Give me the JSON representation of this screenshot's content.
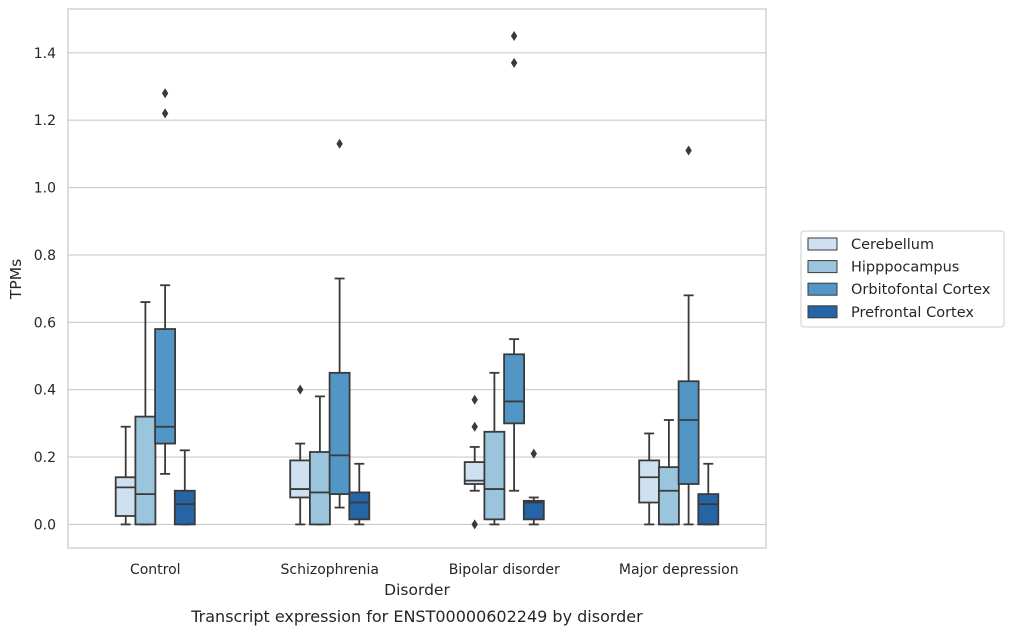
{
  "chart_data": {
    "type": "box",
    "xlabel": "Disorder",
    "ylabel": "TPMs",
    "caption": "Transcript expression for ENST00000602249 by disorder",
    "ylim": [
      -0.07,
      1.53
    ],
    "yticks": [
      0.0,
      0.2,
      0.4,
      0.6,
      0.8,
      1.0,
      1.2,
      1.4
    ],
    "ytick_labels": [
      "0.0",
      "0.2",
      "0.4",
      "0.6",
      "0.8",
      "1.0",
      "1.2",
      "1.4"
    ],
    "grid": "horizontal",
    "legend_position": "right",
    "categories": [
      "Control",
      "Schizophrenia",
      "Bipolar disorder",
      "Major depression"
    ],
    "series": [
      {
        "name": "Cerebellum",
        "color": "#cfe0f0",
        "boxes": [
          {
            "whislo": 0.0,
            "q1": 0.025,
            "med": 0.11,
            "q3": 0.14,
            "whishi": 0.29,
            "fliers": []
          },
          {
            "whislo": 0.0,
            "q1": 0.08,
            "med": 0.105,
            "q3": 0.19,
            "whishi": 0.24,
            "fliers": [
              0.4
            ]
          },
          {
            "whislo": 0.1,
            "q1": 0.12,
            "med": 0.13,
            "q3": 0.185,
            "whishi": 0.23,
            "fliers": [
              0.37,
              0.29,
              0.0
            ]
          },
          {
            "whislo": 0.0,
            "q1": 0.065,
            "med": 0.14,
            "q3": 0.19,
            "whishi": 0.27,
            "fliers": []
          }
        ]
      },
      {
        "name": "Hipppocampus",
        "color": "#9ac5dc",
        "boxes": [
          {
            "whislo": 0.0,
            "q1": 0.0,
            "med": 0.09,
            "q3": 0.32,
            "whishi": 0.66,
            "fliers": []
          },
          {
            "whislo": 0.0,
            "q1": 0.0,
            "med": 0.095,
            "q3": 0.215,
            "whishi": 0.38,
            "fliers": []
          },
          {
            "whislo": 0.0,
            "q1": 0.015,
            "med": 0.105,
            "q3": 0.275,
            "whishi": 0.45,
            "fliers": []
          },
          {
            "whislo": 0.0,
            "q1": 0.0,
            "med": 0.1,
            "q3": 0.17,
            "whishi": 0.31,
            "fliers": []
          }
        ]
      },
      {
        "name": "Orbitofontal Cortex",
        "color": "#5296c6",
        "boxes": [
          {
            "whislo": 0.15,
            "q1": 0.24,
            "med": 0.29,
            "q3": 0.58,
            "whishi": 0.71,
            "fliers": [
              1.28,
              1.22
            ]
          },
          {
            "whislo": 0.05,
            "q1": 0.09,
            "med": 0.205,
            "q3": 0.45,
            "whishi": 0.73,
            "fliers": [
              1.13
            ]
          },
          {
            "whislo": 0.1,
            "q1": 0.3,
            "med": 0.365,
            "q3": 0.505,
            "whishi": 0.55,
            "fliers": [
              1.45,
              1.37
            ]
          },
          {
            "whislo": 0.0,
            "q1": 0.12,
            "med": 0.31,
            "q3": 0.425,
            "whishi": 0.68,
            "fliers": [
              1.11
            ]
          }
        ]
      },
      {
        "name": "Prefrontal Cortex",
        "color": "#2565a6",
        "boxes": [
          {
            "whislo": 0.0,
            "q1": 0.0,
            "med": 0.06,
            "q3": 0.1,
            "whishi": 0.22,
            "fliers": []
          },
          {
            "whislo": 0.0,
            "q1": 0.015,
            "med": 0.065,
            "q3": 0.095,
            "whishi": 0.18,
            "fliers": []
          },
          {
            "whislo": 0.0,
            "q1": 0.015,
            "med": 0.065,
            "q3": 0.07,
            "whishi": 0.08,
            "fliers": [
              0.21
            ]
          },
          {
            "whislo": 0.0,
            "q1": 0.0,
            "med": 0.06,
            "q3": 0.09,
            "whishi": 0.18,
            "fliers": []
          }
        ]
      }
    ]
  }
}
